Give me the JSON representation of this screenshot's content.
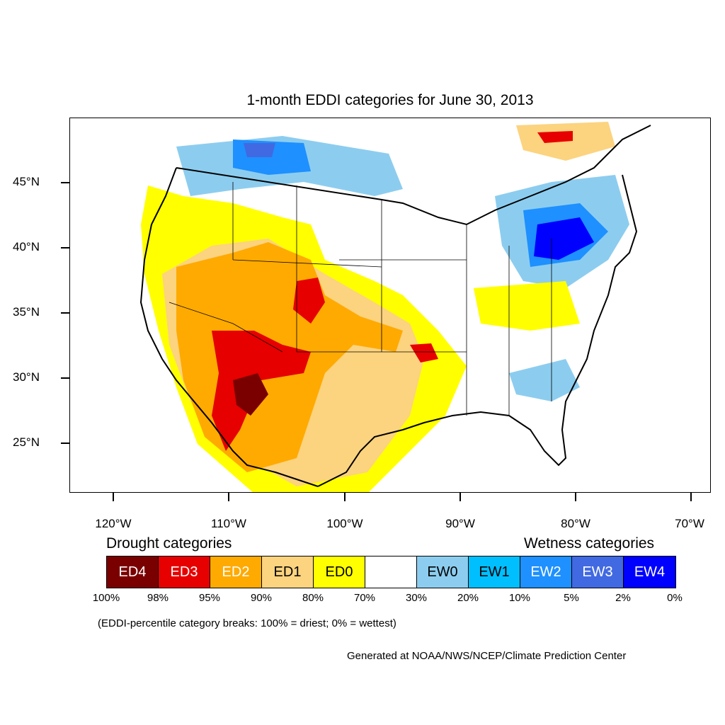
{
  "title": "1-month EDDI categories for June 30, 2013",
  "axes": {
    "lat_labels": [
      "45°N",
      "40°N",
      "35°N",
      "30°N",
      "25°N"
    ],
    "lon_labels": [
      "120°W",
      "110°W",
      "100°W",
      "90°W",
      "80°W",
      "70°W"
    ]
  },
  "legend": {
    "drought_heading": "Drought categories",
    "wetness_heading": "Wetness categories",
    "categories": [
      {
        "label": "ED4",
        "color": "#7a0000",
        "text_color": "#ffffff"
      },
      {
        "label": "ED3",
        "color": "#e60000",
        "text_color": "#ffffff"
      },
      {
        "label": "ED2",
        "color": "#ffaa00",
        "text_color": "#ffffff"
      },
      {
        "label": "ED1",
        "color": "#fcd37f",
        "text_color": "#000000"
      },
      {
        "label": "ED0",
        "color": "#ffff00",
        "text_color": "#000000"
      },
      {
        "label": "",
        "color": "#ffffff",
        "text_color": "#000000"
      },
      {
        "label": "EW0",
        "color": "#8ccdef",
        "text_color": "#000000"
      },
      {
        "label": "EW1",
        "color": "#00bfff",
        "text_color": "#000000"
      },
      {
        "label": "EW2",
        "color": "#1e90ff",
        "text_color": "#ffffff"
      },
      {
        "label": "EW3",
        "color": "#4169e1",
        "text_color": "#ffffff"
      },
      {
        "label": "EW4",
        "color": "#0000ff",
        "text_color": "#ffffff"
      }
    ],
    "percentiles": [
      "100%",
      "98%",
      "95%",
      "90%",
      "80%",
      "70%",
      "30%",
      "20%",
      "10%",
      "5%",
      "2%",
      "0%"
    ]
  },
  "note": "(EDDI-percentile category breaks: 100% = driest; 0% = wettest)",
  "credit": "Generated at NOAA/NWS/NCEP/Climate Prediction Center"
}
